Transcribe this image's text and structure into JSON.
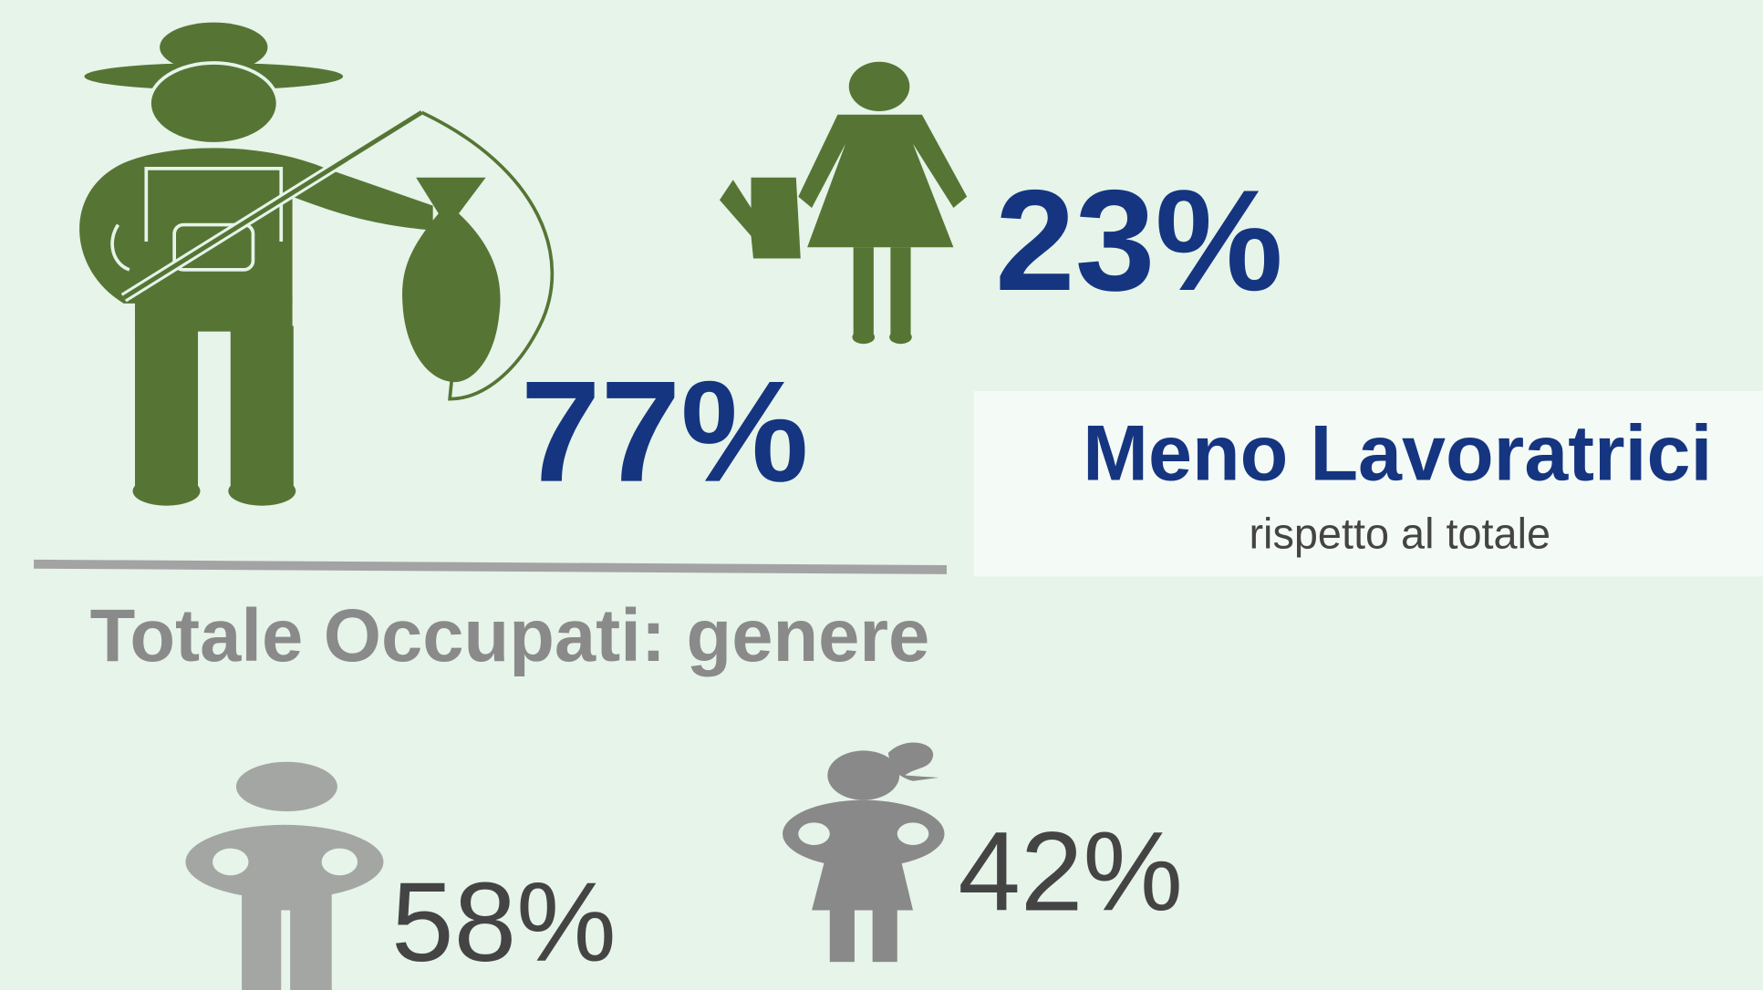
{
  "farmers": {
    "male_share": "77%",
    "female_share": "23%"
  },
  "callout": {
    "title": "Meno Lavoratrici",
    "subtitle": "rispetto al totale"
  },
  "section": {
    "title": "Totale Occupati: genere"
  },
  "employed": {
    "male_share": "58%",
    "female_share": "42%"
  }
}
